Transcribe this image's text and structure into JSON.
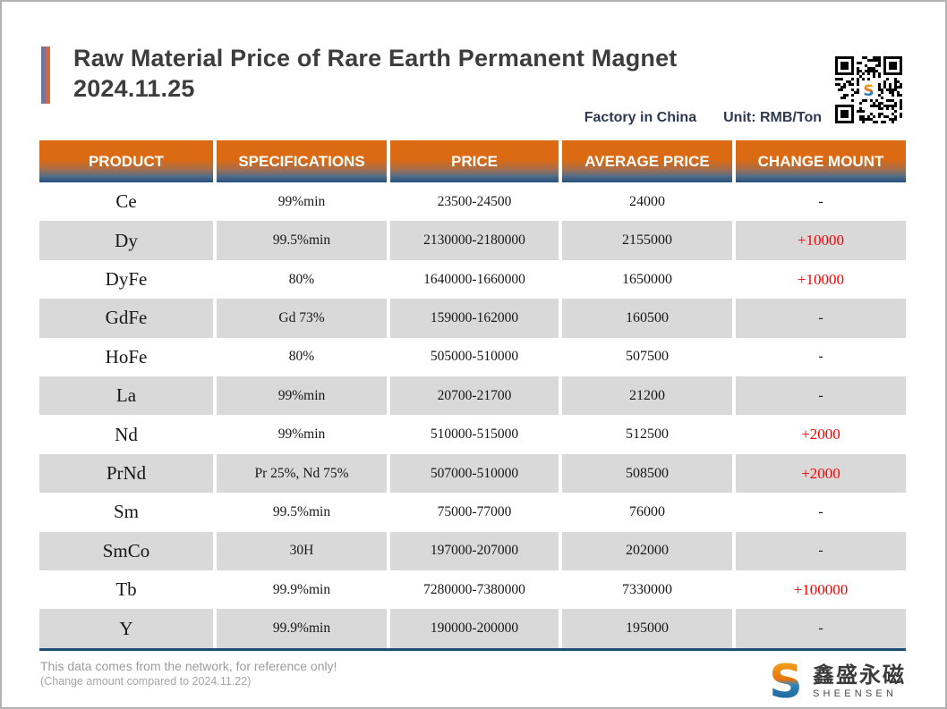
{
  "page": {
    "title": "Raw Material Price of Rare Earth Permanent Magnet",
    "date": "2024.11.25",
    "factory_label": "Factory in China",
    "unit_label": "Unit: RMB/Ton"
  },
  "table": {
    "columns": [
      "PRODUCT",
      "SPECIFICATIONS",
      "PRICE",
      "AVERAGE PRICE",
      "CHANGE MOUNT"
    ],
    "rows": [
      {
        "product": "Ce",
        "specification": "99%min",
        "price": "23500-24500",
        "average_price": "24000",
        "change": "-"
      },
      {
        "product": "Dy",
        "specification": "99.5%min",
        "price": "2130000-2180000",
        "average_price": "2155000",
        "change": "+10000"
      },
      {
        "product": "DyFe",
        "specification": "80%",
        "price": "1640000-1660000",
        "average_price": "1650000",
        "change": "+10000"
      },
      {
        "product": "GdFe",
        "specification": "Gd 73%",
        "price": "159000-162000",
        "average_price": "160500",
        "change": "-"
      },
      {
        "product": "HoFe",
        "specification": "80%",
        "price": "505000-510000",
        "average_price": "507500",
        "change": "-"
      },
      {
        "product": "La",
        "specification": "99%min",
        "price": "20700-21700",
        "average_price": "21200",
        "change": "-"
      },
      {
        "product": "Nd",
        "specification": "99%min",
        "price": "510000-515000",
        "average_price": "512500",
        "change": "+2000"
      },
      {
        "product": "PrNd",
        "specification": "Pr 25%, Nd 75%",
        "price": "507000-510000",
        "average_price": "508500",
        "change": "+2000"
      },
      {
        "product": "Sm",
        "specification": "99.5%min",
        "price": "75000-77000",
        "average_price": "76000",
        "change": "-"
      },
      {
        "product": "SmCo",
        "specification": "30H",
        "price": "197000-207000",
        "average_price": "202000",
        "change": "-"
      },
      {
        "product": "Tb",
        "specification": "99.9%min",
        "price": "7280000-7380000",
        "average_price": "7330000",
        "change": "+100000"
      },
      {
        "product": "Y",
        "specification": "99.9%min",
        "price": "190000-200000",
        "average_price": "195000",
        "change": "-"
      }
    ]
  },
  "footer": {
    "disclaimer": "This data comes from the network, for reference only!",
    "note": "(Change amount compared to 2024.11.22)"
  },
  "brand": {
    "logo_letter": "S",
    "name_cn": "鑫盛永磁",
    "name_en": "SHEENSEN"
  },
  "colors": {
    "header_orange": "#DC6A12",
    "header_blue": "#2E618F",
    "table_border_navy": "#1F4E79",
    "row_stripe_gray": "#D9D9D9",
    "change_positive_red": "#FF0000",
    "logo_orange": "#F6B21B",
    "logo_blue": "#2F84BC"
  }
}
